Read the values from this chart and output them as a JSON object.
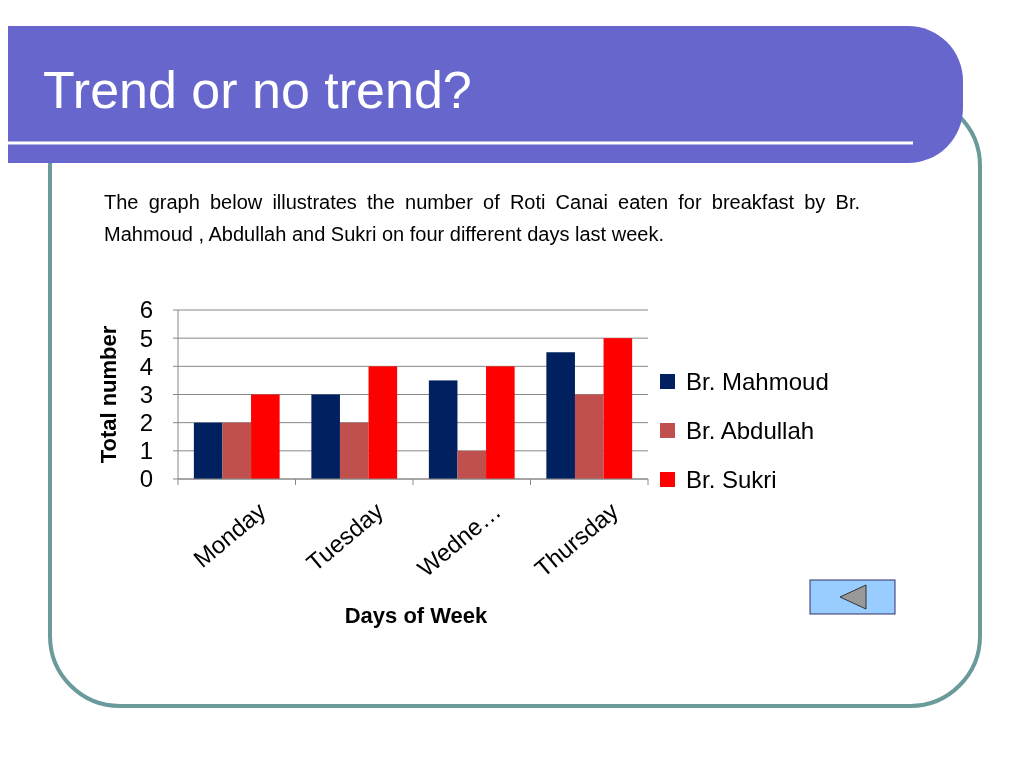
{
  "chart_data": {
    "type": "bar",
    "title": "Trend or no trend?",
    "subtitle": "The graph below illustrates the number of Roti Canai eaten for breakfast by Br. Mahmoud , Abdullah and Sukri on four different days last week.",
    "xlabel": "Days of Week",
    "ylabel": "Total number",
    "categories": [
      "Monday",
      "Tuesday",
      "Wedne…",
      "Thursday"
    ],
    "series": [
      {
        "name": "Br. Mahmoud",
        "color": "#002060",
        "values": [
          2,
          3,
          3.5,
          4.5
        ]
      },
      {
        "name": "Br. Abdullah",
        "color": "#c0504d",
        "values": [
          2,
          2,
          1,
          3
        ]
      },
      {
        "name": "Br. Sukri",
        "color": "#ff0000",
        "values": [
          3,
          4,
          4,
          5
        ]
      }
    ],
    "ylim": [
      0,
      6
    ],
    "yticks": [
      0,
      1,
      2,
      3,
      4,
      5,
      6
    ],
    "grid": "y",
    "legend": "right"
  }
}
